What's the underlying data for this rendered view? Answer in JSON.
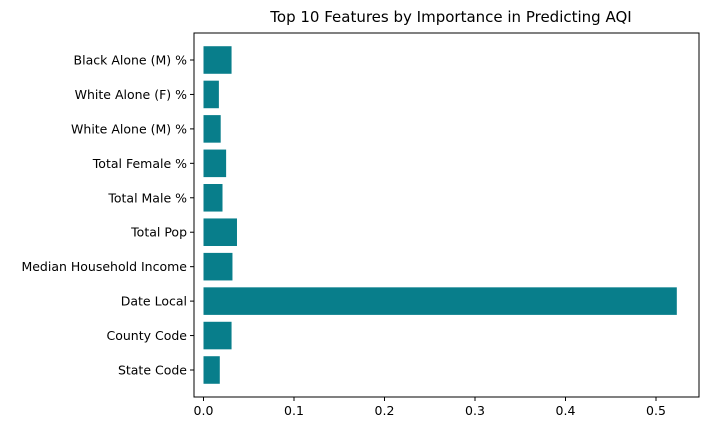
{
  "chart_data": {
    "type": "bar",
    "orientation": "horizontal",
    "title": "Top 10 Features by Importance in Predicting AQI",
    "xlabel": "",
    "ylabel": "",
    "categories": [
      "State Code",
      "County Code",
      "Date Local",
      "Median Household Income",
      "Total Pop",
      "Total Male %",
      "Total Female %",
      "White Alone (M) %",
      "White Alone (F) %",
      "Black Alone (M) %"
    ],
    "values": [
      0.018,
      0.031,
      0.523,
      0.032,
      0.037,
      0.021,
      0.025,
      0.019,
      0.017,
      0.031
    ],
    "xlim": [
      0,
      0.55
    ],
    "xticks": [
      0.0,
      0.1,
      0.2,
      0.3,
      0.4,
      0.5
    ],
    "xtick_labels": [
      "0.0",
      "0.1",
      "0.2",
      "0.3",
      "0.4",
      "0.5"
    ],
    "bar_color": "#087e8b",
    "grid": false,
    "legend": "none"
  }
}
